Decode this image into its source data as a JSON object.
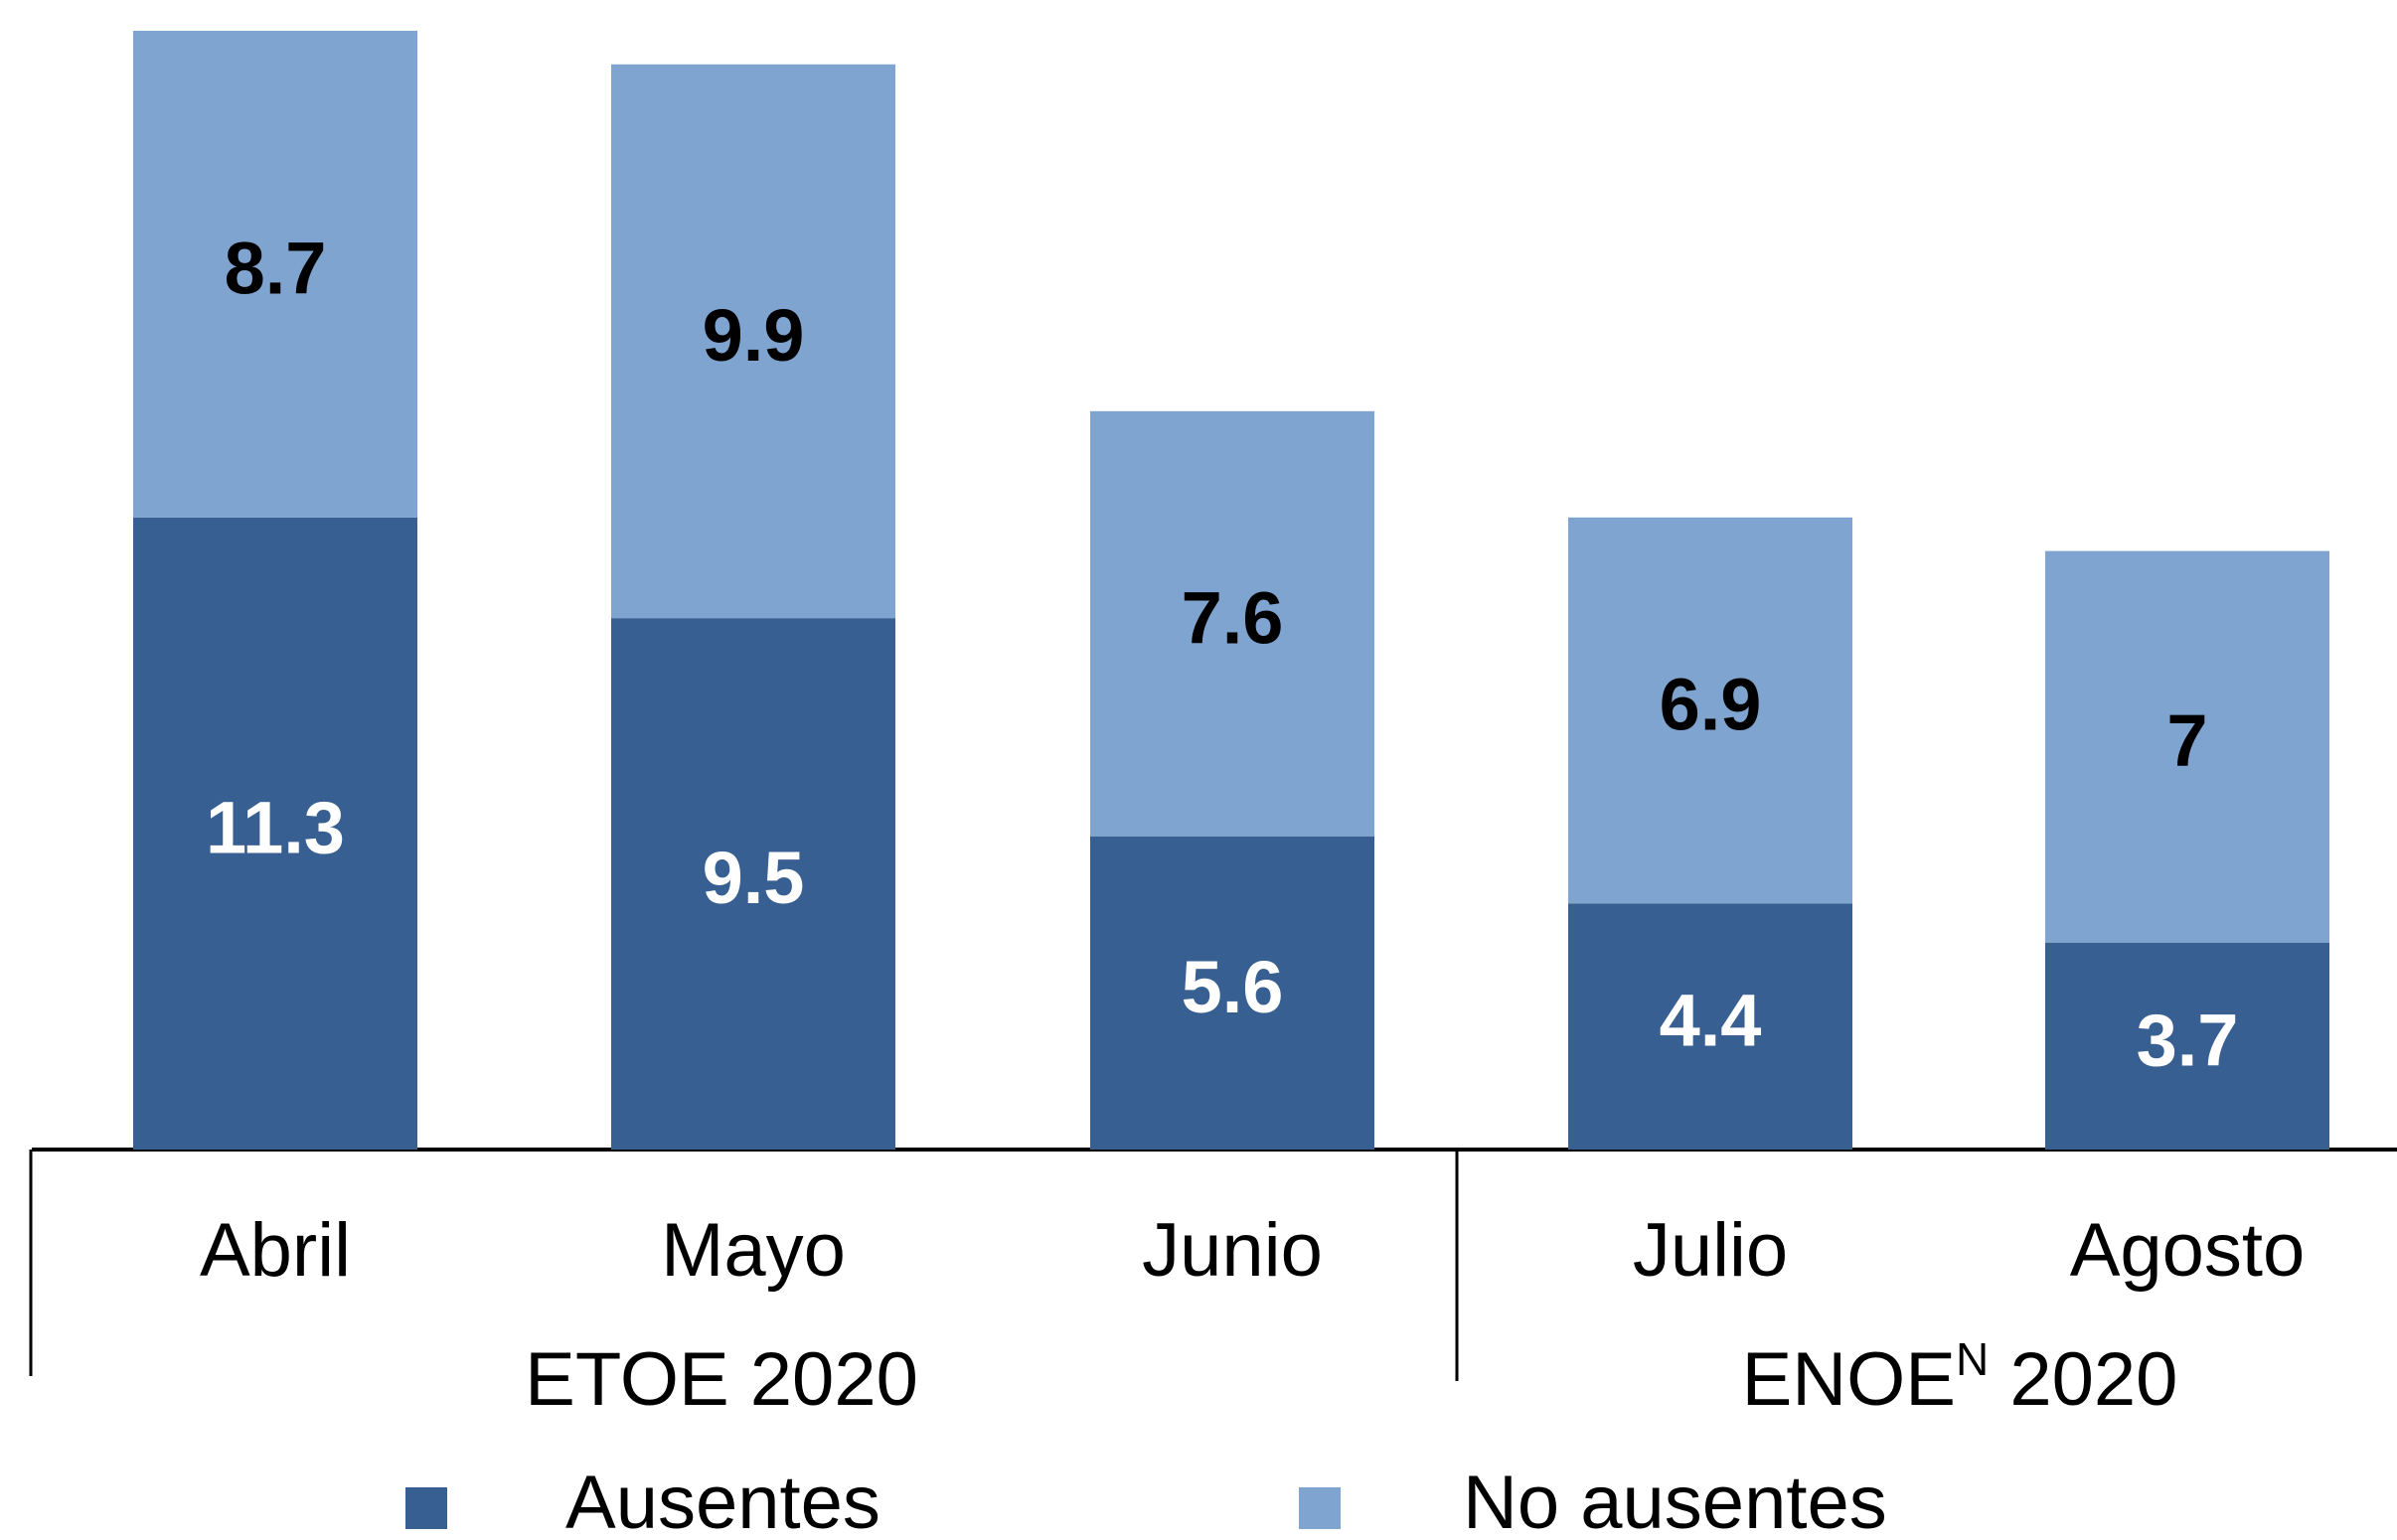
{
  "chart_data": {
    "type": "stacked-bar",
    "groups": [
      {
        "label": "ETOE 2020",
        "categories": [
          "Abril",
          "Mayo",
          "Junio"
        ]
      },
      {
        "label": "ENOE",
        "superscript": "N",
        "year": "2020",
        "categories": [
          "Julio",
          "Agosto"
        ]
      }
    ],
    "series": [
      {
        "name": "Ausentes",
        "color": "#375f91",
        "label_color": "#ffffff",
        "values": [
          11.3,
          9.5,
          5.6,
          4.4,
          3.7
        ]
      },
      {
        "name": "No ausentes",
        "color": "#7ea4cf",
        "label_color": "#000000",
        "values": [
          8.7,
          9.9,
          7.6,
          6.9,
          7.0
        ]
      }
    ]
  }
}
